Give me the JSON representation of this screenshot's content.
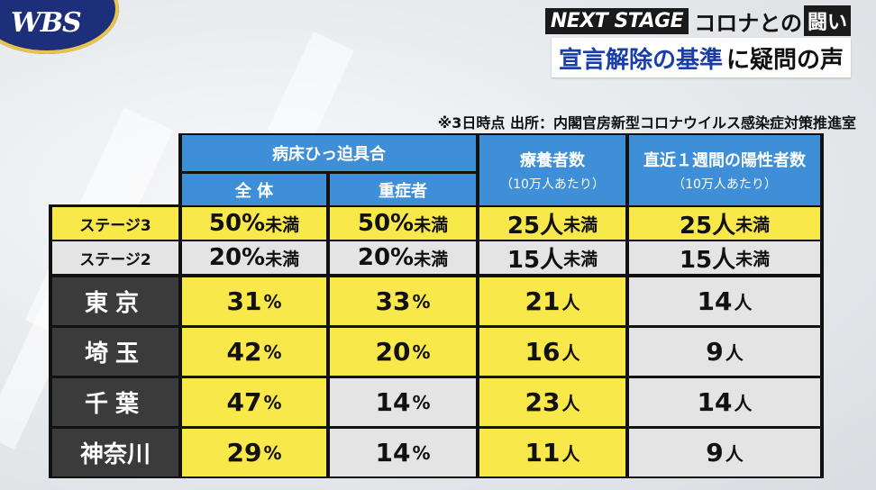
{
  "logo": "WBS",
  "headline": {
    "next_stage": "NEXT STAGE",
    "corona": "コロナとの",
    "tatakai": "闘い",
    "main_blue": "宣言解除の基準",
    "main_black": "に疑問の声"
  },
  "source_note": "※3日時点 出所：内閣官房新型コロナウイルス感染症対策推進室",
  "table": {
    "headers": {
      "bed": "病床ひっ迫具合",
      "bed_all": "全 体",
      "bed_severe": "重症者",
      "recuperating": "療養者数",
      "recuperating_sub": "（10万人あたり）",
      "weekly_positive": "直近１週間の陽性者数",
      "weekly_positive_sub": "（10万人あたり）"
    },
    "stages": [
      {
        "label": "ステージ3",
        "bed_all": "50%",
        "bed_all_unit": "未満",
        "bed_severe": "50%",
        "bed_severe_unit": "未満",
        "recuperating": "25人",
        "recuperating_unit": "未満",
        "weekly": "25人",
        "weekly_unit": "未満"
      },
      {
        "label": "ステージ2",
        "bed_all": "20%",
        "bed_all_unit": "未満",
        "bed_severe": "20%",
        "bed_severe_unit": "未満",
        "recuperating": "15人",
        "recuperating_unit": "未満",
        "weekly": "15人",
        "weekly_unit": "未満"
      }
    ],
    "prefectures": [
      {
        "name": "東京",
        "bed_all": "31",
        "bed_severe": "33",
        "recuperating": "21",
        "weekly": "14"
      },
      {
        "name": "埼玉",
        "bed_all": "42",
        "bed_severe": "20",
        "recuperating": "16",
        "weekly": "9"
      },
      {
        "name": "千葉",
        "bed_all": "47",
        "bed_severe": "14",
        "recuperating": "23",
        "weekly": "14"
      },
      {
        "name": "神奈川",
        "bed_all": "29",
        "bed_severe": "14",
        "recuperating": "11",
        "weekly": "9"
      }
    ],
    "units": {
      "percent": "%",
      "person": "人"
    },
    "colors": {
      "header": "#3f8fd8",
      "meets": "#f8e84a",
      "not_meets": "#e4e4e4",
      "label": "#3b3b3b"
    }
  }
}
